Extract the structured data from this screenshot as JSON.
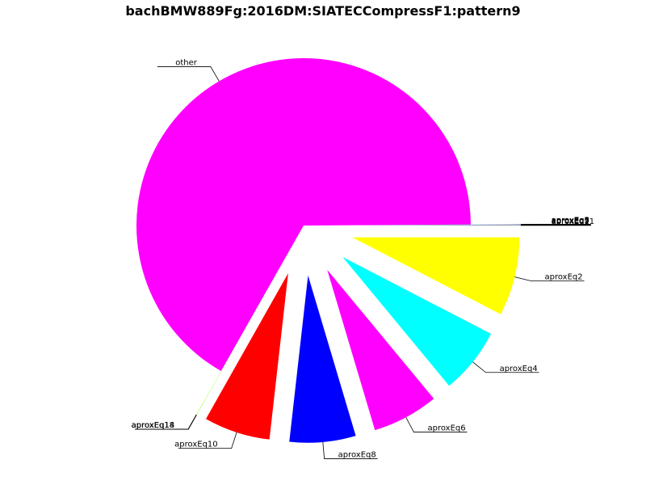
{
  "chart_data": {
    "type": "pie",
    "title": "bachBMW889Fg:2016DM:SIATECCompressF1:pattern9",
    "slices": [
      {
        "label": "aproxEq2",
        "value": 7.6,
        "color": "#ffff00",
        "explode": true
      },
      {
        "label": "aproxEq4",
        "value": 6.4,
        "color": "#00ffff",
        "explode": true
      },
      {
        "label": "aproxEq6",
        "value": 6.4,
        "color": "#ff00ff",
        "explode": true
      },
      {
        "label": "aproxEq8",
        "value": 6.4,
        "color": "#0000ff",
        "explode": true
      },
      {
        "label": "aproxEq10",
        "value": 6.4,
        "color": "#ff0000",
        "explode": true
      },
      {
        "label": "aproxEq14",
        "value": 0.02,
        "color": "#00ff00",
        "explode": true
      },
      {
        "label": "aproxEq18",
        "value": 0.02,
        "color": "#ffff00",
        "explode": true
      },
      {
        "label": "other",
        "value": 66.7,
        "color": "#ff00ff",
        "explode": false
      },
      {
        "label": "aproxEq3",
        "value": 0.02,
        "color": "#00ffff",
        "explode": true
      },
      {
        "label": "aproxEq5",
        "value": 0.02,
        "color": "#ff00ff",
        "explode": true
      },
      {
        "label": "aproxEq7",
        "value": 0.02,
        "color": "#0000ff",
        "explode": true
      },
      {
        "label": "aproxEq9",
        "value": 0.02,
        "color": "#ff0000",
        "explode": true
      },
      {
        "label": "aproxEq11",
        "value": 0.02,
        "color": "#00ff00",
        "explode": true
      }
    ]
  }
}
